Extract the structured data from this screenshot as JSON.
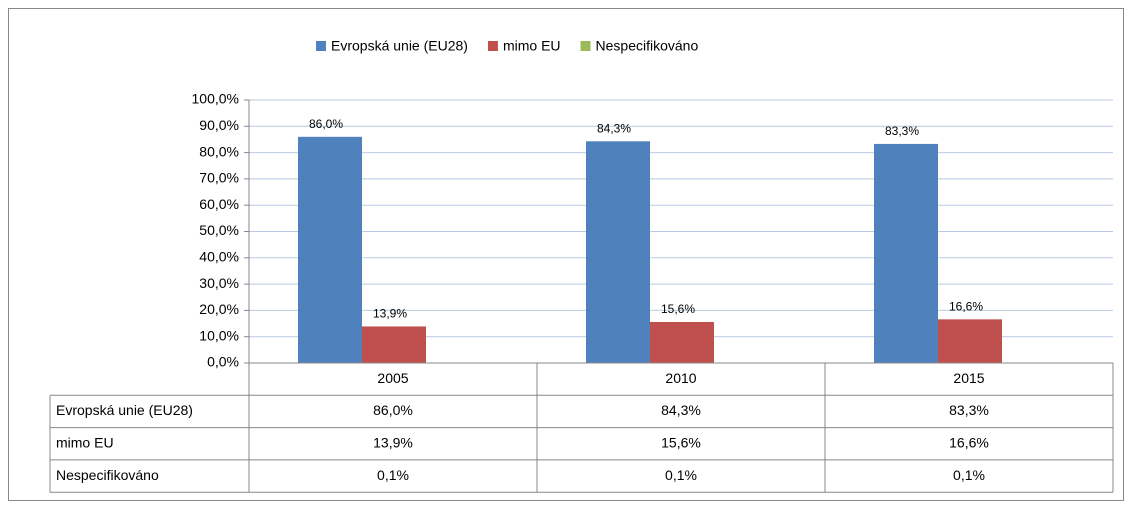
{
  "chart_data": {
    "type": "bar",
    "categories": [
      "2005",
      "2010",
      "2015"
    ],
    "series": [
      {
        "name": "Evropská unie (EU28)",
        "color": "#4f81bd",
        "values": [
          86.0,
          84.3,
          83.3
        ],
        "value_labels": [
          "86,0%",
          "84,3%",
          "83,3%"
        ],
        "show_labels": true
      },
      {
        "name": "mimo EU",
        "color": "#c0504d",
        "values": [
          13.9,
          15.6,
          16.6
        ],
        "value_labels": [
          "13,9%",
          "15,6%",
          "16,6%"
        ],
        "show_labels": true
      },
      {
        "name": "Nespecifikováno",
        "color": "#9bbb59",
        "values": [
          0.1,
          0.1,
          0.1
        ],
        "value_labels": [
          "0,1%",
          "0,1%",
          "0,1%"
        ],
        "show_labels": false
      }
    ],
    "ylim": [
      0,
      100
    ],
    "yticks": [
      {
        "value": 0,
        "label": "0,0%"
      },
      {
        "value": 10,
        "label": "10,0%"
      },
      {
        "value": 20,
        "label": "20,0%"
      },
      {
        "value": 30,
        "label": "30,0%"
      },
      {
        "value": 40,
        "label": "40,0%"
      },
      {
        "value": 50,
        "label": "50,0%"
      },
      {
        "value": 60,
        "label": "60,0%"
      },
      {
        "value": 70,
        "label": "70,0%"
      },
      {
        "value": 80,
        "label": "80,0%"
      },
      {
        "value": 90,
        "label": "90,0%"
      },
      {
        "value": 100,
        "label": "100,0%"
      }
    ],
    "grid": true,
    "legend": "top",
    "data_table": true
  }
}
